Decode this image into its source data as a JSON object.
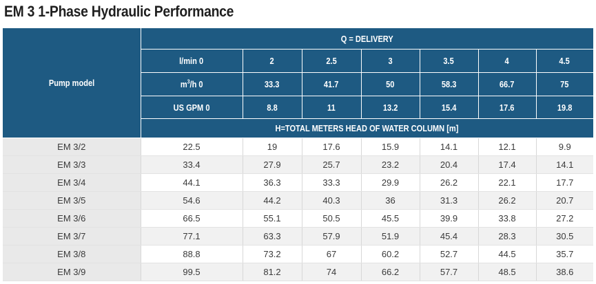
{
  "title": "EM 3 1-Phase Hydraulic Performance",
  "table": {
    "pump_model_label": "Pump model",
    "delivery_label": "Q = DELIVERY",
    "head_label": "H=TOTAL METERS HEAD OF WATER COLUMN [m]",
    "units": {
      "lmin": {
        "label": "l/min 0",
        "values": [
          "2",
          "2.5",
          "3",
          "3.5",
          "4",
          "4.5"
        ]
      },
      "m3h": {
        "label_pre": "m",
        "label_sup": "3",
        "label_post": "/h 0",
        "values": [
          "33.3",
          "41.7",
          "50",
          "58.3",
          "66.7",
          "75"
        ]
      },
      "gpm": {
        "label": "US GPM 0",
        "values": [
          "8.8",
          "11",
          "13.2",
          "15.4",
          "17.6",
          "19.8"
        ]
      }
    },
    "rows": [
      {
        "model": "EM 3/2",
        "values": [
          "22.5",
          "19",
          "17.6",
          "15.9",
          "14.1",
          "12.1",
          "9.9"
        ]
      },
      {
        "model": "EM 3/3",
        "values": [
          "33.4",
          "27.9",
          "25.7",
          "23.2",
          "20.4",
          "17.4",
          "14.1"
        ]
      },
      {
        "model": "EM 3/4",
        "values": [
          "44.1",
          "36.3",
          "33.3",
          "29.9",
          "26.2",
          "22.1",
          "17.7"
        ]
      },
      {
        "model": "EM 3/5",
        "values": [
          "54.6",
          "44.2",
          "40.3",
          "36",
          "31.3",
          "26.2",
          "20.7"
        ]
      },
      {
        "model": "EM 3/6",
        "values": [
          "66.5",
          "55.1",
          "50.5",
          "45.5",
          "39.9",
          "33.8",
          "27.2"
        ]
      },
      {
        "model": "EM 3/7",
        "values": [
          "77.1",
          "63.3",
          "57.9",
          "51.9",
          "45.4",
          "28.3",
          "30.5"
        ]
      },
      {
        "model": "EM 3/8",
        "values": [
          "88.8",
          "73.2",
          "67",
          "60.2",
          "52.7",
          "44.5",
          "35.7"
        ]
      },
      {
        "model": "EM 3/9",
        "values": [
          "99.5",
          "81.2",
          "74",
          "66.2",
          "57.7",
          "48.5",
          "38.6"
        ]
      }
    ]
  }
}
